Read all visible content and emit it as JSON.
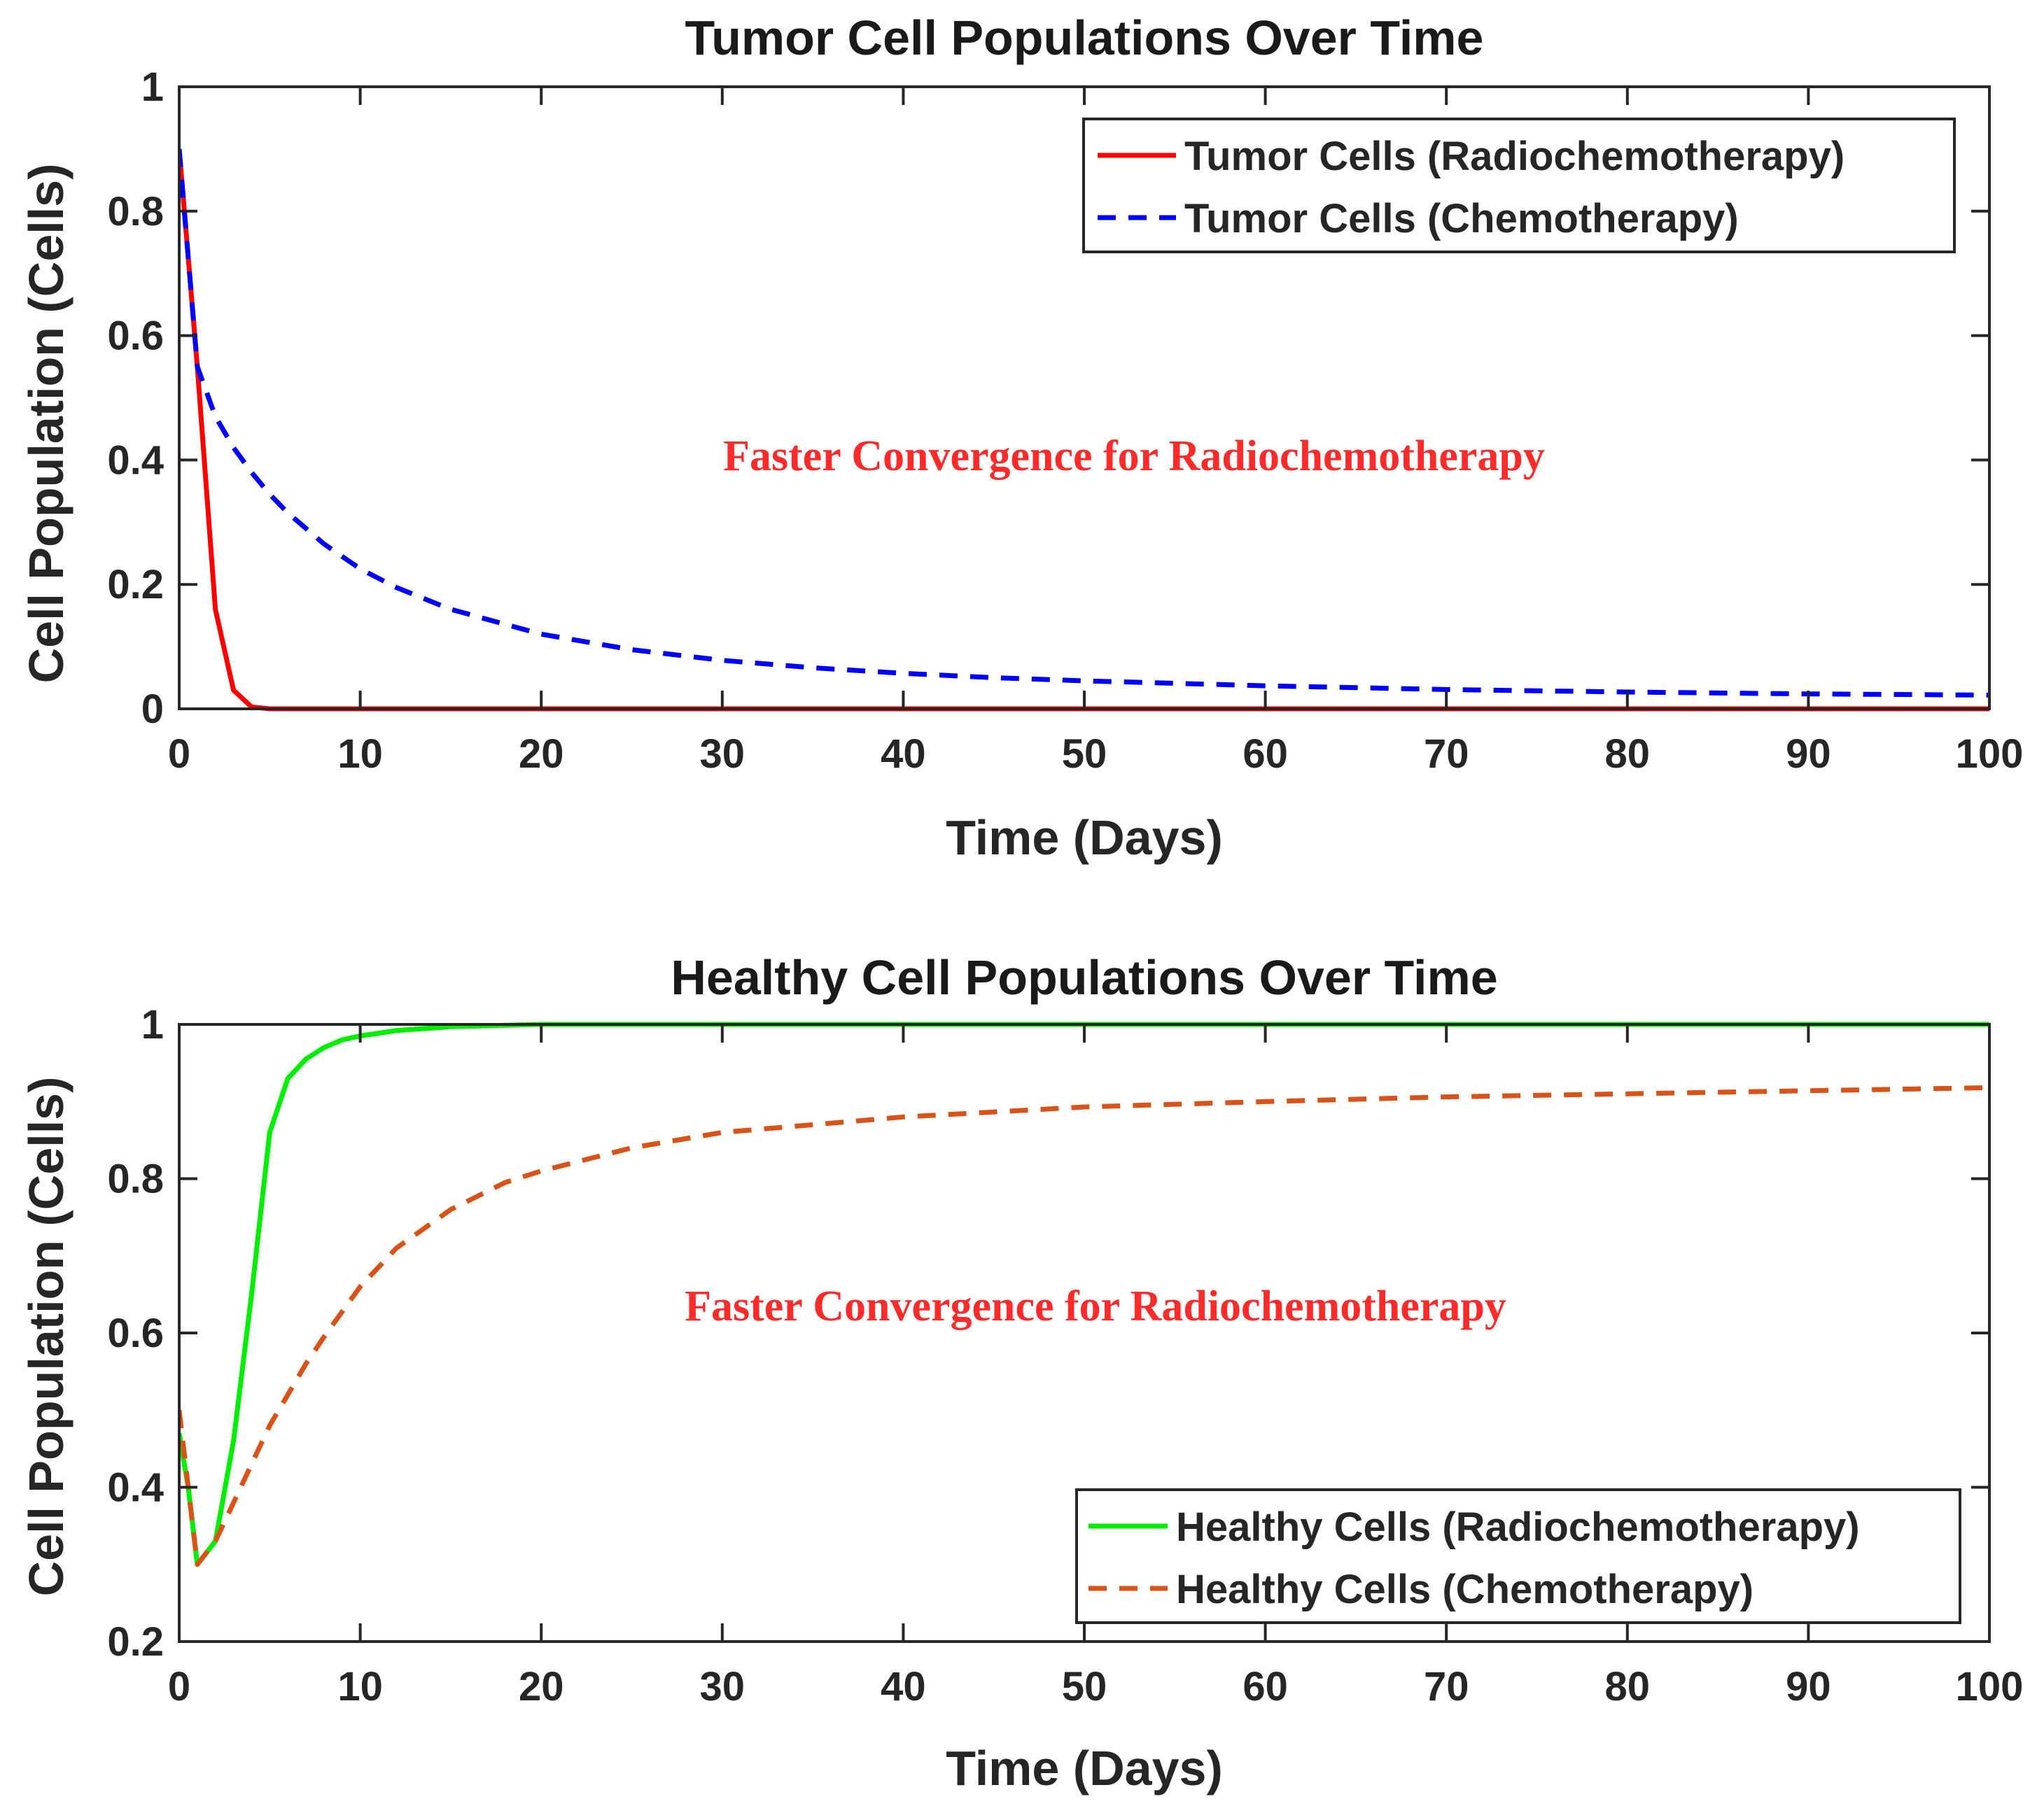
{
  "chart_data": [
    {
      "type": "line",
      "title": "Tumor Cell Populations Over Time",
      "xlabel": "Time (Days)",
      "ylabel": "Cell Population (Cells)",
      "xlim": [
        0,
        100
      ],
      "ylim": [
        0,
        1
      ],
      "xticks": [
        0,
        10,
        20,
        30,
        40,
        50,
        60,
        70,
        80,
        90,
        100
      ],
      "yticks": [
        0,
        0.2,
        0.4,
        0.6,
        0.8,
        1
      ],
      "ytick_labels": [
        "0",
        "0.2",
        "0.4",
        "0.6",
        "0.8",
        "1"
      ],
      "grid": false,
      "legend_position": "top-right",
      "annotation": {
        "text": "Faster Convergence for Radiochemotherapy",
        "x": 53,
        "y": 0.4,
        "color": "#ff2a2a"
      },
      "series": [
        {
          "name": "Tumor Cells (Radiochemotherapy)",
          "color": "#ff0000",
          "dash": "solid",
          "x": [
            0,
            1,
            2,
            3,
            4,
            5,
            10,
            20,
            30,
            40,
            50,
            60,
            70,
            80,
            90,
            100
          ],
          "y": [
            0.9,
            0.55,
            0.16,
            0.03,
            0.003,
            0.0,
            0.0,
            0.0,
            0.0,
            0.0,
            0.0,
            0.0,
            0.0,
            0.0,
            0.0,
            0.0
          ]
        },
        {
          "name": "Tumor Cells (Chemotherapy)",
          "color": "#0000ff",
          "dash": "dashed",
          "x": [
            0,
            1,
            2,
            3,
            4,
            5,
            6,
            8,
            10,
            12,
            15,
            20,
            25,
            30,
            35,
            40,
            45,
            50,
            60,
            70,
            80,
            90,
            100
          ],
          "y": [
            0.9,
            0.55,
            0.47,
            0.42,
            0.38,
            0.345,
            0.315,
            0.265,
            0.225,
            0.195,
            0.16,
            0.12,
            0.095,
            0.078,
            0.066,
            0.057,
            0.05,
            0.045,
            0.037,
            0.031,
            0.027,
            0.024,
            0.022
          ]
        }
      ]
    },
    {
      "type": "line",
      "title": "Healthy Cell Populations Over Time",
      "xlabel": "Time (Days)",
      "ylabel": "Cell Population (Cells)",
      "xlim": [
        0,
        100
      ],
      "ylim": [
        0.2,
        1
      ],
      "xticks": [
        0,
        10,
        20,
        30,
        40,
        50,
        60,
        70,
        80,
        90,
        100
      ],
      "yticks": [
        0.2,
        0.4,
        0.6,
        0.8,
        1
      ],
      "ytick_labels": [
        "0.2",
        "0.4",
        "0.6",
        "0.8",
        "1"
      ],
      "grid": false,
      "legend_position": "bottom-right",
      "annotation": {
        "text": "Faster Convergence for Radiochemotherapy",
        "x": 51,
        "y": 0.635,
        "color": "#ff2a2a"
      },
      "series": [
        {
          "name": "Healthy Cells (Radiochemotherapy)",
          "color": "#00ee00",
          "dash": "solid",
          "x": [
            0,
            0.5,
            1,
            2,
            3,
            4,
            5,
            6,
            7,
            8,
            9,
            10,
            12,
            15,
            20,
            30,
            40,
            50,
            60,
            70,
            80,
            90,
            100
          ],
          "y": [
            0.47,
            0.4,
            0.3,
            0.33,
            0.46,
            0.65,
            0.86,
            0.93,
            0.955,
            0.97,
            0.98,
            0.985,
            0.992,
            0.997,
            1.0,
            1.0,
            1.0,
            1.0,
            1.0,
            1.0,
            1.0,
            1.0,
            1.0
          ]
        },
        {
          "name": "Healthy Cells (Chemotherapy)",
          "color": "#d95319",
          "dash": "dashed",
          "x": [
            0,
            0.5,
            1,
            2,
            3,
            4,
            5,
            6,
            7,
            8,
            10,
            12,
            15,
            18,
            20,
            25,
            30,
            40,
            50,
            60,
            70,
            80,
            90,
            100
          ],
          "y": [
            0.5,
            0.4,
            0.3,
            0.33,
            0.38,
            0.43,
            0.48,
            0.52,
            0.56,
            0.595,
            0.66,
            0.71,
            0.76,
            0.795,
            0.81,
            0.84,
            0.86,
            0.88,
            0.893,
            0.9,
            0.906,
            0.91,
            0.914,
            0.918
          ]
        }
      ]
    }
  ]
}
